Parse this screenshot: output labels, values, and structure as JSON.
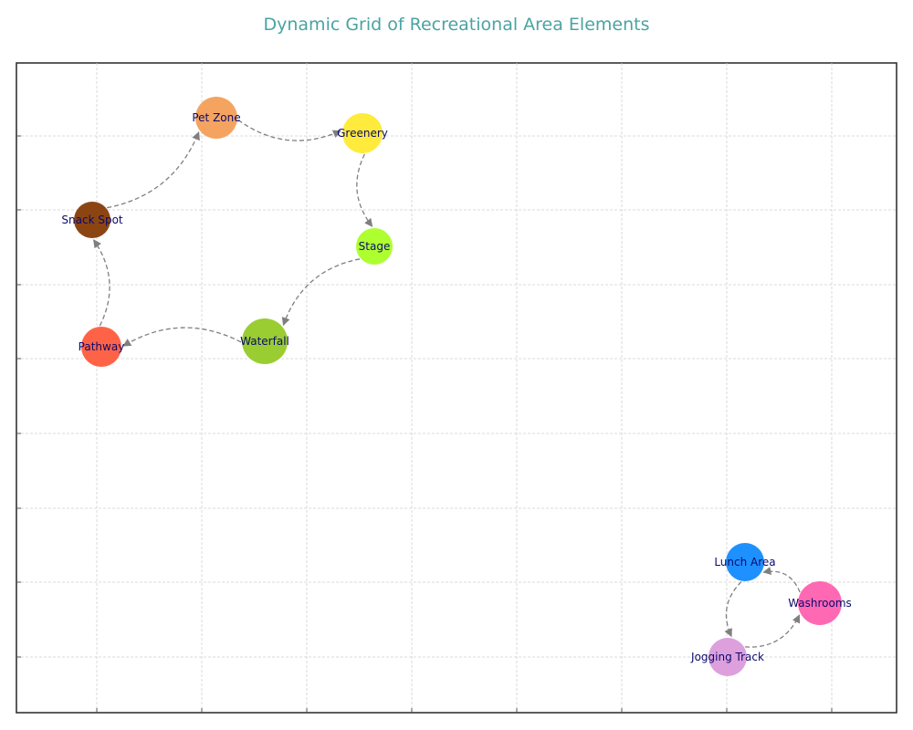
{
  "title": "Dynamic Grid of Recreational Area Elements",
  "edge_color": "#7f7f7f",
  "label_color": "#0a0a6e",
  "nodes": [
    {
      "id": "pet-zone",
      "label": "Pet Zone",
      "color": "#f4a460"
    },
    {
      "id": "greenery",
      "label": "Greenery",
      "color": "#ffeb3b"
    },
    {
      "id": "snack-spot",
      "label": "Snack Spot",
      "color": "#8b4513"
    },
    {
      "id": "stage",
      "label": "Stage",
      "color": "#adff2f"
    },
    {
      "id": "pathway",
      "label": "Pathway",
      "color": "#ff6347"
    },
    {
      "id": "waterfall",
      "label": "Waterfall",
      "color": "#9acd32"
    },
    {
      "id": "lunch-area",
      "label": "Lunch Area",
      "color": "#1e90ff"
    },
    {
      "id": "washrooms",
      "label": "Washrooms",
      "color": "#ff69b4"
    },
    {
      "id": "jogging-track",
      "label": "Jogging Track",
      "color": "#dda0dd"
    }
  ],
  "edges": [
    {
      "from": "pet-zone",
      "to": "greenery"
    },
    {
      "from": "greenery",
      "to": "stage"
    },
    {
      "from": "stage",
      "to": "waterfall"
    },
    {
      "from": "waterfall",
      "to": "pathway"
    },
    {
      "from": "pathway",
      "to": "snack-spot"
    },
    {
      "from": "snack-spot",
      "to": "pet-zone"
    },
    {
      "from": "washrooms",
      "to": "lunch-area"
    },
    {
      "from": "lunch-area",
      "to": "jogging-track"
    },
    {
      "from": "jogging-track",
      "to": "washrooms"
    }
  ]
}
